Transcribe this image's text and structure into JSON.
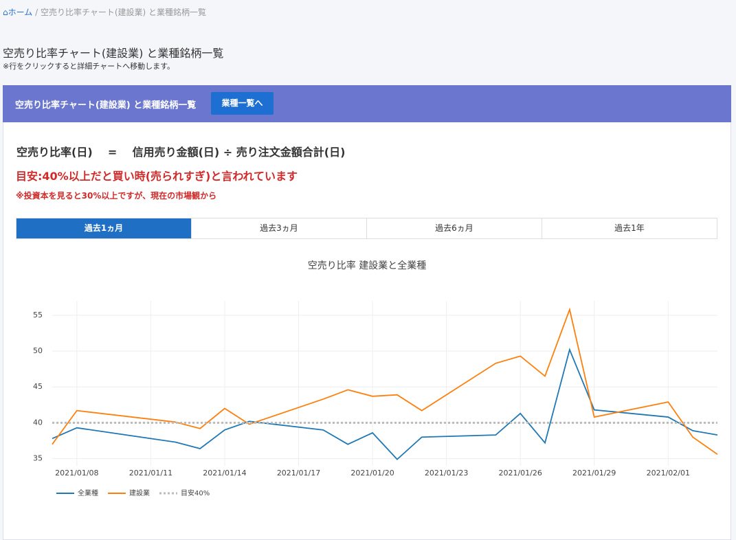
{
  "breadcrumb": {
    "home": "ホーム",
    "current": "空売り比率チャート(建設業) と業種銘柄一覧"
  },
  "header": {
    "title": "空売り比率チャート(建設業) と業種銘柄一覧",
    "note": "※行をクリックすると詳細チャートへ移動します。"
  },
  "card": {
    "title": "空売り比率チャート(建設業) と業種銘柄一覧",
    "button": "業種一覧へ"
  },
  "formula": {
    "left": "空売り比率(日)",
    "eq": "=",
    "right": "信用売り金額(日) ÷ 売り注文金額合計(日)"
  },
  "guide": "目安:40%以上だと買い時(売られすぎ)と言われています",
  "guide_note": "※投資本を見ると30%以上ですが、現在の市場観から",
  "tabs": [
    "過去1ヵ月",
    "過去3ヵ月",
    "過去6ヵ月",
    "過去1年"
  ],
  "active_tab": 0,
  "chart_data": {
    "type": "line",
    "title": "空売り比率 建設業と全業種",
    "x": [
      "2021/01/07",
      "2021/01/08",
      "2021/01/12",
      "2021/01/13",
      "2021/01/14",
      "2021/01/15",
      "2021/01/18",
      "2021/01/19",
      "2021/01/20",
      "2021/01/21",
      "2021/01/22",
      "2021/01/25",
      "2021/01/26",
      "2021/01/27",
      "2021/01/28",
      "2021/01/29",
      "2021/02/01",
      "2021/02/02",
      "2021/02/03"
    ],
    "series": [
      {
        "name": "全業種",
        "color": "#1f77b4",
        "dash": false,
        "values": [
          37.8,
          39.3,
          37.3,
          36.4,
          39.0,
          40.2,
          39.0,
          37.0,
          38.6,
          34.9,
          38.0,
          38.3,
          41.3,
          37.2,
          50.2,
          41.8,
          40.8,
          38.9,
          38.3
        ]
      },
      {
        "name": "建設業",
        "color": "#ff7f0e",
        "dash": false,
        "values": [
          37.0,
          41.7,
          40.1,
          39.2,
          42.0,
          39.8,
          43.3,
          44.6,
          43.7,
          43.9,
          41.7,
          48.3,
          49.3,
          46.5,
          55.8,
          40.8,
          42.9,
          38.0,
          35.6
        ]
      },
      {
        "name": "目安40%",
        "color": "#bbbbbb",
        "dash": true,
        "values": [
          40,
          40,
          40,
          40,
          40,
          40,
          40,
          40,
          40,
          40,
          40,
          40,
          40,
          40,
          40,
          40,
          40,
          40,
          40
        ]
      }
    ],
    "xlim": [
      "2021/01/07",
      "2021/02/03"
    ],
    "xticks": [
      "2021/01/08",
      "2021/01/11",
      "2021/01/14",
      "2021/01/17",
      "2021/01/20",
      "2021/01/23",
      "2021/01/26",
      "2021/01/29",
      "2021/02/01"
    ],
    "ylim": [
      34,
      57
    ],
    "yticks": [
      35,
      40,
      45,
      50,
      55
    ],
    "grid": true,
    "legend": "bottom-left"
  }
}
